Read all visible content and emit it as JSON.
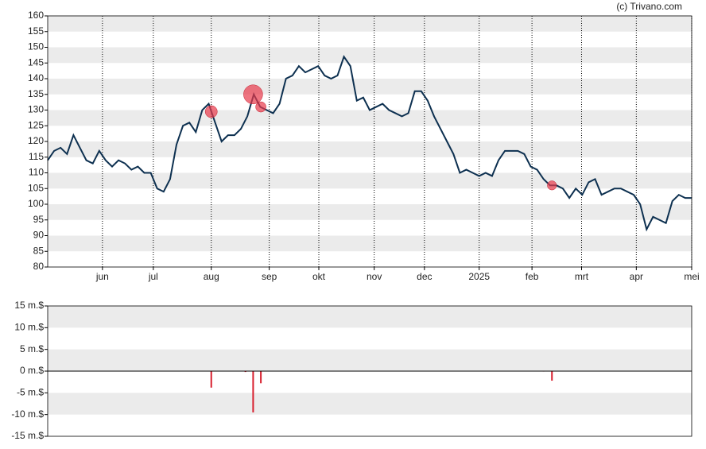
{
  "credit": "(c) Trivano.com",
  "chart_data": [
    {
      "type": "line",
      "xlim": [
        0,
        100
      ],
      "xticks": [
        {
          "value": 8.5,
          "label": "jun"
        },
        {
          "value": 16.4,
          "label": "jul"
        },
        {
          "value": 25.4,
          "label": "aug"
        },
        {
          "value": 34.4,
          "label": "sep"
        },
        {
          "value": 42.1,
          "label": "okt"
        },
        {
          "value": 50.7,
          "label": "nov"
        },
        {
          "value": 58.5,
          "label": "dec"
        },
        {
          "value": 67.0,
          "label": "2025"
        },
        {
          "value": 75.2,
          "label": "feb"
        },
        {
          "value": 82.9,
          "label": "mrt"
        },
        {
          "value": 91.4,
          "label": "apr"
        },
        {
          "value": 100,
          "label": "mei"
        }
      ],
      "ylim": [
        80,
        160
      ],
      "yticks": [
        80,
        85,
        90,
        95,
        100,
        105,
        110,
        115,
        120,
        125,
        130,
        135,
        140,
        145,
        150,
        155,
        160
      ],
      "series": [
        {
          "color": "#0d3050",
          "values": [
            114,
            117,
            118,
            116,
            122,
            118,
            114,
            113,
            117,
            114,
            112,
            114,
            113,
            111,
            112,
            110,
            110,
            105,
            104,
            108,
            119,
            125,
            126,
            123,
            130,
            132,
            126,
            120,
            122,
            122,
            124,
            128,
            135,
            131,
            130,
            129,
            132,
            140,
            141,
            144,
            142,
            143,
            144,
            141,
            140,
            141,
            147,
            144,
            133,
            134,
            130,
            131,
            132,
            130,
            129,
            128,
            129,
            136,
            136,
            133,
            128,
            124,
            120,
            116,
            110,
            111,
            110,
            109,
            110,
            109,
            114,
            117,
            117,
            117,
            116,
            112,
            111,
            108,
            106,
            106,
            105,
            102,
            105,
            103,
            107,
            108,
            103,
            104,
            105,
            105,
            104,
            103,
            100,
            92,
            96,
            95,
            94,
            101,
            103,
            102,
            102
          ]
        }
      ],
      "markers": {
        "color": "#e8394a",
        "x": [
          25.4,
          31.9,
          33.1,
          78.3
        ],
        "y": [
          129.5,
          135,
          131,
          106
        ],
        "sizes": [
          3.8,
          9.5,
          2.8,
          2.2
        ]
      }
    },
    {
      "type": "bar",
      "xlim": [
        0,
        100
      ],
      "ylim": [
        -15,
        15
      ],
      "yticks": [
        {
          "value": -15,
          "label": "-15 m.$"
        },
        {
          "value": -10,
          "label": "-10 m.$"
        },
        {
          "value": -5,
          "label": "-5 m.$"
        },
        {
          "value": 0,
          "label": "0 m.$"
        },
        {
          "value": 5,
          "label": "5 m.$"
        },
        {
          "value": 10,
          "label": "10 m.$"
        },
        {
          "value": 15,
          "label": "15 m.$"
        }
      ],
      "color": "#d8202f",
      "x": [
        25.4,
        30.7,
        31.9,
        33.1,
        77.0,
        78.3
      ],
      "values": [
        -3.8,
        -0.2,
        -9.5,
        -2.8,
        -0.1,
        -2.2
      ]
    }
  ]
}
